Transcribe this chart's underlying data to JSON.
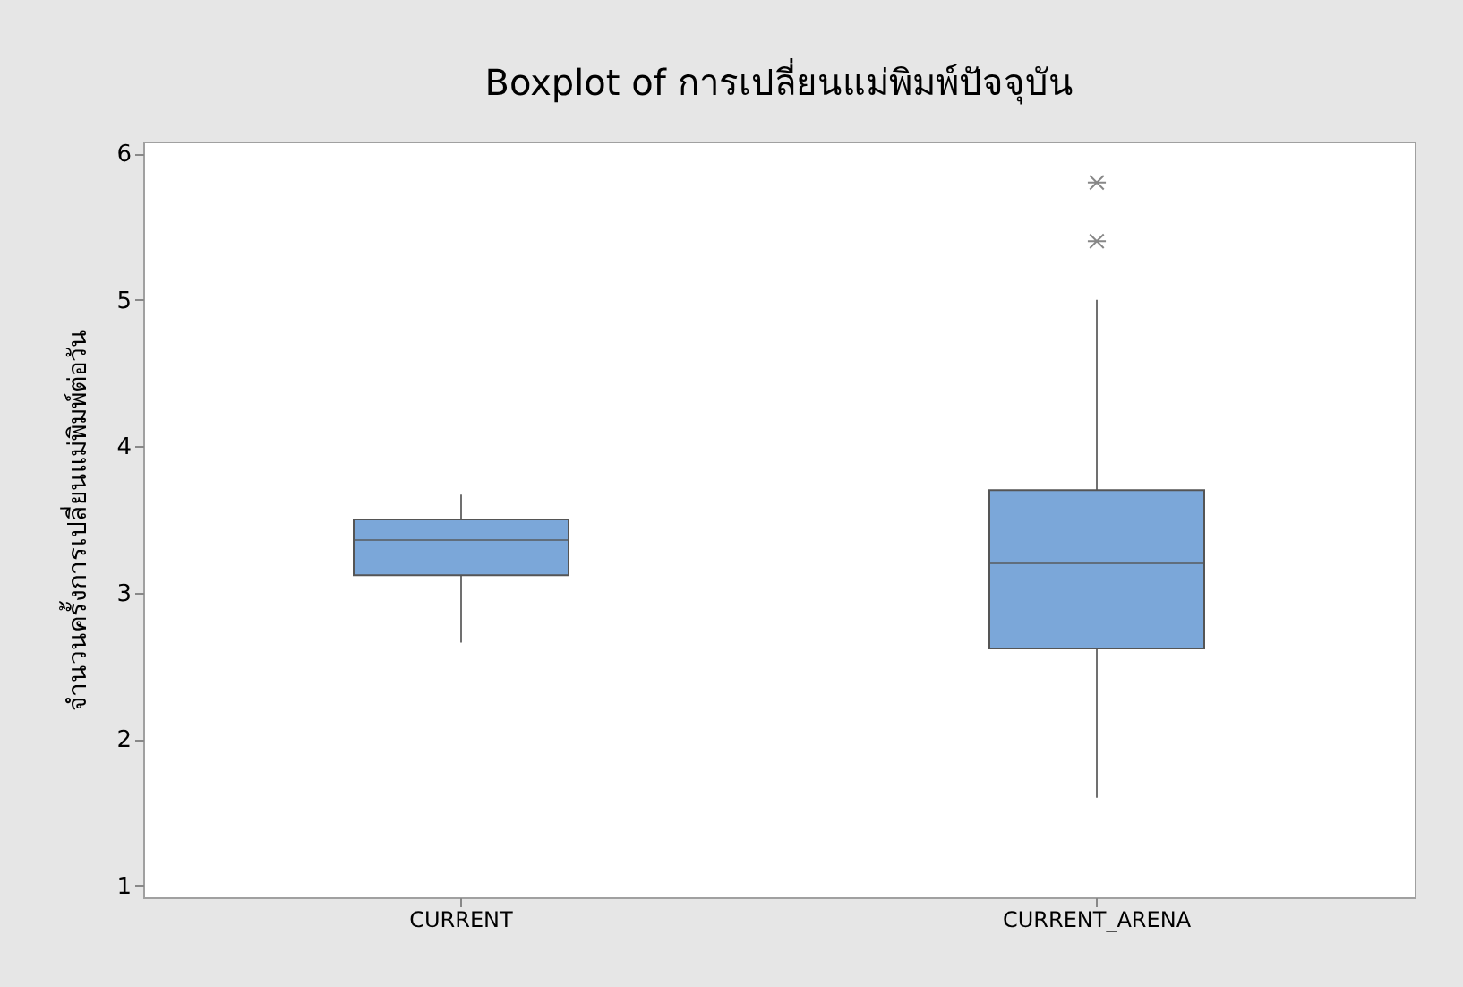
{
  "chart_data": {
    "type": "box",
    "title": "Boxplot of การเปลี่ยนแม่พิมพ์ปัจจุบัน",
    "ylabel": "จำนวนครั้งการเปลี่ยนแม่พิมพ์ต่อวัน",
    "categories": [
      "CURRENT",
      "CURRENT_ARENA"
    ],
    "series": [
      {
        "color": "#7ba7d9",
        "boxes": [
          {
            "low": 2.66,
            "q1": 3.12,
            "median": 3.36,
            "q3": 3.5,
            "high": 3.67
          },
          {
            "low": 1.6,
            "q1": 2.62,
            "median": 3.2,
            "q3": 3.7,
            "high": 5.0,
            "outliers": [
              5.4,
              5.8
            ]
          }
        ]
      }
    ],
    "ylim": [
      0.92,
      6.08
    ],
    "yticks": [
      1,
      2,
      3,
      4,
      5,
      6
    ],
    "grid": false,
    "marker": "star"
  }
}
